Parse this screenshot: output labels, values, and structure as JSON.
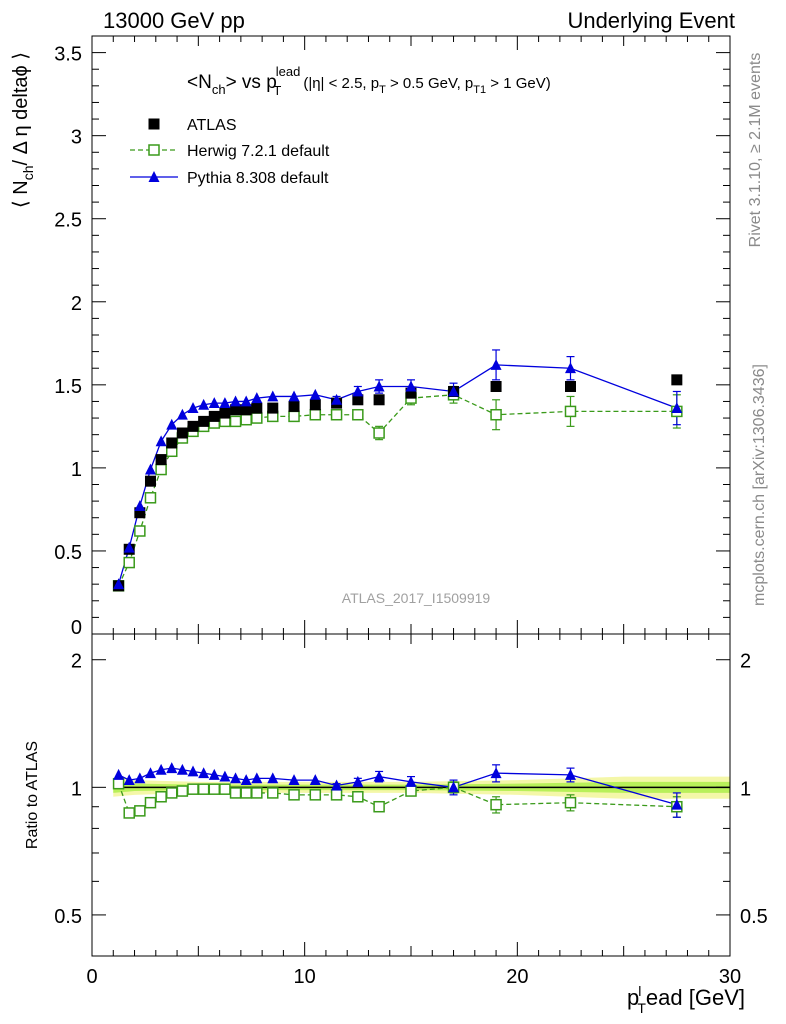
{
  "header": {
    "left": "13000 GeV pp",
    "right": "Underlying Event"
  },
  "side_text": {
    "rivet": "Rivet 3.1.10, ≥ 2.1M events",
    "mcplots": "mcplots.cern.ch [arXiv:1306.3436]"
  },
  "watermark": "ATLAS_2017_I1509919",
  "colors": {
    "atlas": "#000000",
    "herwig": "#3a9a1a",
    "pythia": "#0000dd",
    "band_inner": "#b8f05a",
    "band_outer": "#f4f7a8"
  },
  "chart_data": [
    {
      "type": "scatter",
      "panel": "main",
      "title_parts": {
        "main": "<N",
        "main_sub": "ch",
        "mid": "> vs p",
        "mid_sup": "lead",
        "mid_sub": "T",
        "cut1": "(|η| < 2.5, p",
        "cut1_sub": "T",
        "cut2": " > 0.5 GeV, p",
        "cut2_sub": "T1",
        "cut3": " > 1 GeV)"
      },
      "ylabel_parts": {
        "a": "⟨ N",
        "sub": "ch",
        "b": "/ Δ η deltaϕ ⟩"
      },
      "xlim": [
        0,
        30
      ],
      "ylim": [
        0,
        3.6
      ],
      "yticks": [
        "0",
        "0.5",
        "1",
        "1.5",
        "2",
        "2.5",
        "3",
        "3.5"
      ],
      "legend_position": "top-left",
      "series": [
        {
          "name": "ATLAS",
          "marker": "filled-square",
          "x": [
            1.25,
            1.75,
            2.25,
            2.75,
            3.25,
            3.75,
            4.25,
            4.75,
            5.25,
            5.75,
            6.25,
            6.75,
            7.25,
            7.75,
            8.5,
            9.5,
            10.5,
            11.5,
            12.5,
            13.5,
            15,
            17,
            19,
            22.5,
            27.5
          ],
          "y": [
            0.29,
            0.51,
            0.73,
            0.92,
            1.05,
            1.15,
            1.21,
            1.25,
            1.28,
            1.31,
            1.33,
            1.35,
            1.35,
            1.36,
            1.36,
            1.37,
            1.38,
            1.39,
            1.41,
            1.41,
            1.45,
            1.46,
            1.49,
            1.49,
            1.53
          ]
        },
        {
          "name": "Herwig 7.2.1 default",
          "marker": "open-square",
          "line": "dashed",
          "x": [
            1.25,
            1.75,
            2.25,
            2.75,
            3.25,
            3.75,
            4.25,
            4.75,
            5.25,
            5.75,
            6.25,
            6.75,
            7.25,
            7.75,
            8.5,
            9.5,
            10.5,
            11.5,
            12.5,
            13.5,
            15,
            17,
            19,
            22.5,
            27.5
          ],
          "y": [
            0.29,
            0.43,
            0.62,
            0.82,
            0.99,
            1.1,
            1.18,
            1.22,
            1.25,
            1.27,
            1.28,
            1.28,
            1.29,
            1.3,
            1.31,
            1.31,
            1.32,
            1.32,
            1.32,
            1.21,
            1.42,
            1.44,
            1.32,
            1.34,
            1.34
          ],
          "yerr": [
            0,
            0,
            0,
            0,
            0,
            0,
            0,
            0,
            0,
            0,
            0,
            0,
            0,
            0,
            0,
            0,
            0,
            0,
            0.02,
            0.04,
            0.04,
            0.05,
            0.09,
            0.09,
            0.1
          ]
        },
        {
          "name": "Pythia 8.308 default",
          "marker": "filled-triangle",
          "line": "solid",
          "x": [
            1.25,
            1.75,
            2.25,
            2.75,
            3.25,
            3.75,
            4.25,
            4.75,
            5.25,
            5.75,
            6.25,
            6.75,
            7.25,
            7.75,
            8.5,
            9.5,
            10.5,
            11.5,
            12.5,
            13.5,
            15,
            17,
            19,
            22.5,
            27.5
          ],
          "y": [
            0.3,
            0.52,
            0.77,
            0.99,
            1.16,
            1.26,
            1.32,
            1.36,
            1.38,
            1.39,
            1.39,
            1.4,
            1.4,
            1.42,
            1.43,
            1.43,
            1.44,
            1.41,
            1.46,
            1.49,
            1.49,
            1.46,
            1.62,
            1.6,
            1.36
          ],
          "yerr": [
            0,
            0,
            0,
            0,
            0,
            0,
            0,
            0,
            0,
            0,
            0,
            0,
            0,
            0,
            0,
            0,
            0,
            0.02,
            0.03,
            0.04,
            0.04,
            0.05,
            0.09,
            0.07,
            0.1
          ]
        }
      ]
    },
    {
      "type": "scatter",
      "panel": "ratio",
      "ylabel": "Ratio to ATLAS",
      "xlabel_parts": {
        "a": "p",
        "sub": "T",
        "sup": "l",
        "b": "ead [GeV]"
      },
      "xlim": [
        0,
        30
      ],
      "xticks": [
        "0",
        "10",
        "20",
        "30"
      ],
      "ylim": [
        0.4,
        2.3
      ],
      "ylog": true,
      "yticks": [
        "0.5",
        "1",
        "2"
      ],
      "reference_band": {
        "x": [
          1,
          2,
          5,
          10,
          15,
          20,
          25,
          30
        ],
        "inner": [
          0.03,
          0.02,
          0.015,
          0.015,
          0.015,
          0.02,
          0.03,
          0.03
        ],
        "outer": [
          0.05,
          0.04,
          0.03,
          0.03,
          0.03,
          0.04,
          0.06,
          0.06
        ]
      },
      "series": [
        {
          "name": "Herwig 7.2.1 default",
          "x": [
            1.25,
            1.75,
            2.25,
            2.75,
            3.25,
            3.75,
            4.25,
            4.75,
            5.25,
            5.75,
            6.25,
            6.75,
            7.25,
            7.75,
            8.5,
            9.5,
            10.5,
            11.5,
            12.5,
            13.5,
            15,
            17,
            19,
            22.5,
            27.5
          ],
          "y": [
            1.02,
            0.87,
            0.88,
            0.92,
            0.95,
            0.97,
            0.98,
            0.99,
            0.99,
            0.99,
            0.99,
            0.97,
            0.97,
            0.97,
            0.97,
            0.96,
            0.96,
            0.96,
            0.95,
            0.9,
            0.98,
            1.0,
            0.91,
            0.92,
            0.9
          ],
          "yerr": [
            0,
            0,
            0,
            0,
            0,
            0,
            0,
            0,
            0,
            0,
            0,
            0,
            0,
            0,
            0,
            0,
            0,
            0,
            0.01,
            0.02,
            0.02,
            0.03,
            0.04,
            0.04,
            0.05
          ]
        },
        {
          "name": "Pythia 8.308 default",
          "x": [
            1.25,
            1.75,
            2.25,
            2.75,
            3.25,
            3.75,
            4.25,
            4.75,
            5.25,
            5.75,
            6.25,
            6.75,
            7.25,
            7.75,
            8.5,
            9.5,
            10.5,
            11.5,
            12.5,
            13.5,
            15,
            17,
            19,
            22.5,
            27.5
          ],
          "y": [
            1.07,
            1.04,
            1.05,
            1.08,
            1.1,
            1.11,
            1.1,
            1.09,
            1.08,
            1.07,
            1.06,
            1.05,
            1.04,
            1.05,
            1.05,
            1.04,
            1.04,
            1.01,
            1.03,
            1.06,
            1.03,
            1.0,
            1.08,
            1.07,
            0.91
          ],
          "yerr": [
            0,
            0,
            0,
            0,
            0,
            0,
            0,
            0,
            0,
            0,
            0,
            0,
            0,
            0,
            0,
            0,
            0,
            0.01,
            0.02,
            0.03,
            0.03,
            0.04,
            0.05,
            0.04,
            0.06
          ]
        }
      ]
    }
  ]
}
